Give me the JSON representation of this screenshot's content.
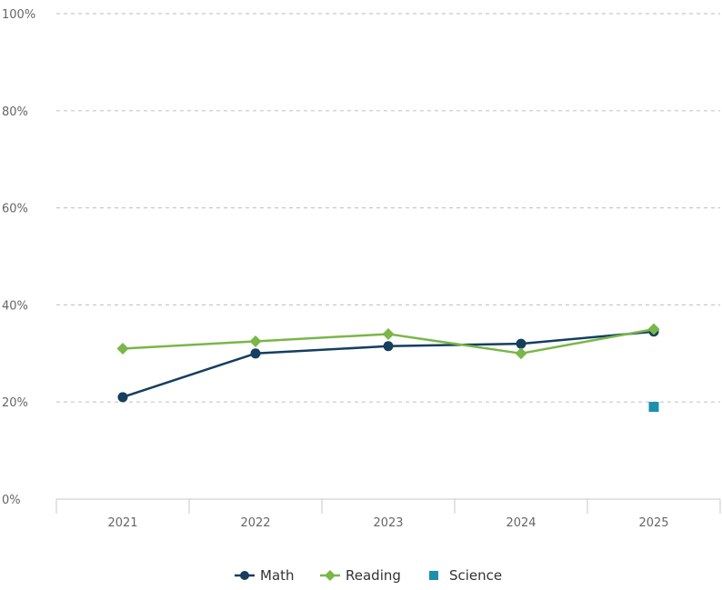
{
  "chart_data": {
    "type": "line",
    "categories": [
      "2021",
      "2022",
      "2023",
      "2024",
      "2025"
    ],
    "ylim": [
      0,
      100
    ],
    "yticks": [
      0,
      20,
      40,
      60,
      80,
      100
    ],
    "ytick_labels": [
      "0%",
      "20%",
      "40%",
      "60%",
      "80%",
      "100%"
    ],
    "grid": true,
    "legend_position": "bottom-center",
    "title": "",
    "xlabel": "",
    "ylabel": "",
    "series": [
      {
        "name": "Math",
        "color": "#153e5f",
        "marker": "circle",
        "line": true,
        "values": [
          21,
          30,
          31.5,
          32,
          34.5
        ]
      },
      {
        "name": "Reading",
        "color": "#7ab648",
        "marker": "diamond",
        "line": true,
        "values": [
          31,
          32.5,
          34,
          30,
          35
        ]
      },
      {
        "name": "Science",
        "color": "#1d8fae",
        "marker": "square",
        "line": false,
        "values": [
          null,
          null,
          null,
          null,
          19
        ]
      }
    ]
  }
}
